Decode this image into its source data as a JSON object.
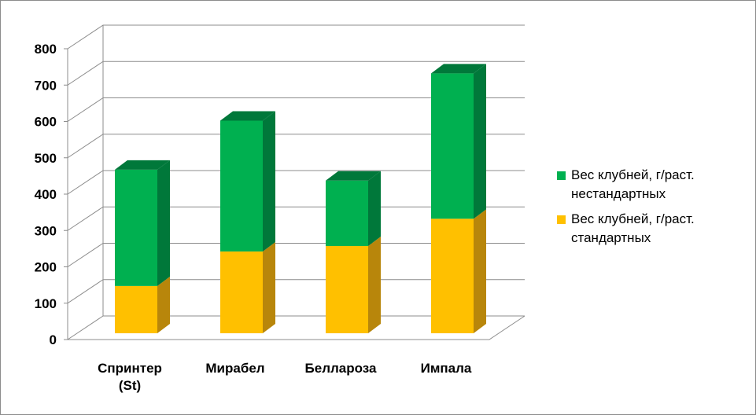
{
  "chart_data": {
    "type": "bar",
    "stacked": true,
    "three_d": true,
    "title": "",
    "xlabel": "",
    "ylabel": "",
    "ylim": [
      0,
      800
    ],
    "yticks": [
      "0",
      "100",
      "200",
      "300",
      "400",
      "500",
      "600",
      "700",
      "800"
    ],
    "grid": true,
    "legend_position": "right",
    "categories": [
      [
        "Спринтер",
        "(St)"
      ],
      [
        "Мирабел"
      ],
      [
        "Беллароза"
      ],
      [
        "Импала"
      ]
    ],
    "series": [
      {
        "name": [
          "Вес клубней, г/раст.",
          "стандартных"
        ],
        "values": [
          130,
          225,
          240,
          315
        ],
        "color": "#ffc000",
        "side_color": "#b8860b"
      },
      {
        "name": [
          "Вес клубней, г/раст.",
          "нестандартных"
        ],
        "values": [
          320,
          360,
          180,
          400
        ],
        "color": "#00b050",
        "side_color": "#00783a"
      }
    ]
  }
}
